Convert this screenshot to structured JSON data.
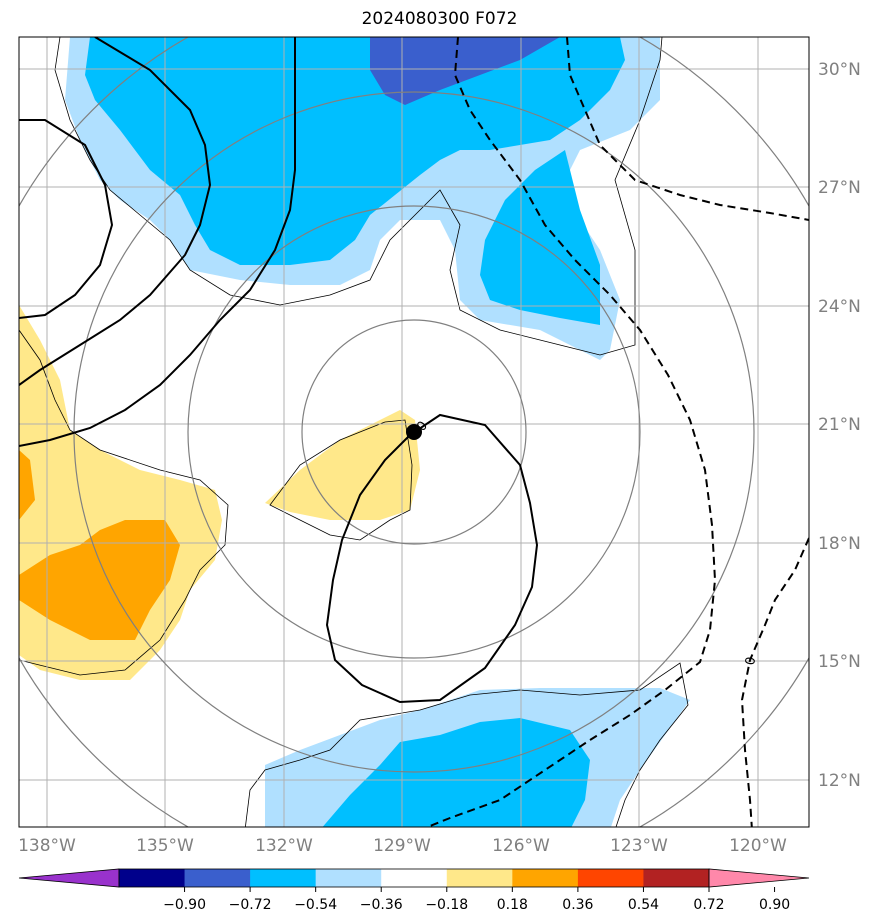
{
  "title": "2024080300 F072",
  "map": {
    "lat_labels": [
      "30°N",
      "27°N",
      "24°N",
      "21°N",
      "18°N",
      "15°N",
      "12°N"
    ],
    "lon_labels": [
      "138°W",
      "135°W",
      "132°W",
      "129°W",
      "126°W",
      "123°W",
      "120°W"
    ],
    "contour_labels": [
      "0",
      "0"
    ],
    "storm_center": {
      "lat": 20.8,
      "lon": -128.7
    },
    "colors": {
      "blue_dark": "#3a5fcd",
      "blue_mid": "#00bfff",
      "blue_light": "#b0e0ff",
      "yellow": "#ffe88a",
      "orange": "#ffa500",
      "grid": "#b0b0b0",
      "range_rings": "#808080"
    }
  },
  "colorbar": {
    "ticks": [
      "−0.90",
      "−0.72",
      "−0.54",
      "−0.36",
      "−0.18",
      "0.18",
      "0.36",
      "0.54",
      "0.72",
      "0.90"
    ],
    "colors": [
      "#9932cc",
      "#00008b",
      "#3a5fcd",
      "#00bfff",
      "#b0e0ff",
      "#ffffff",
      "#ffe88a",
      "#ffa500",
      "#ff4500",
      "#b22222",
      "#ff88aa"
    ]
  }
}
